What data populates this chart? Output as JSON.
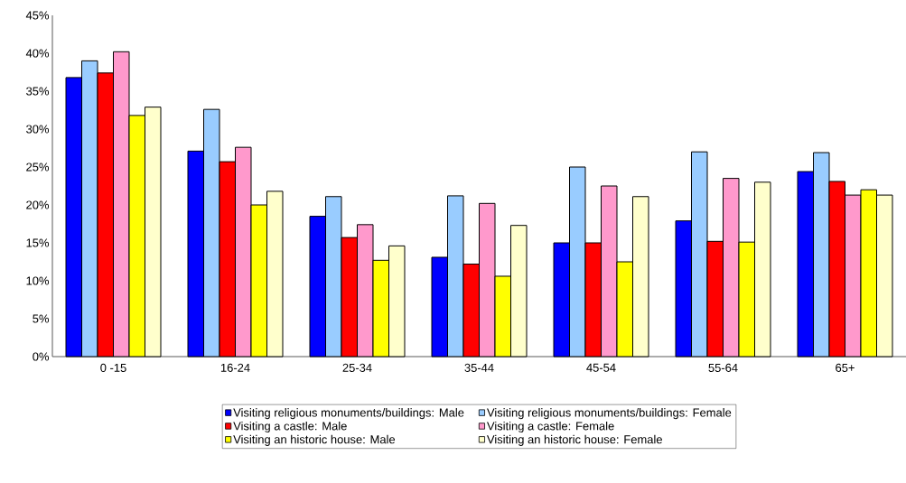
{
  "chart_data": {
    "type": "bar",
    "categories": [
      "0 -15",
      "16-24",
      "25-34",
      "35-44",
      "45-54",
      "55-64",
      "65+"
    ],
    "series": [
      {
        "name": "Visiting religious monuments/buildings: Male",
        "color": "#0000ff",
        "values": [
          36.8,
          27.1,
          18.5,
          13.1,
          15.0,
          17.9,
          24.4
        ]
      },
      {
        "name": "Visiting religious monuments/buildings: Female",
        "color": "#99ccff",
        "values": [
          39.0,
          32.6,
          21.1,
          21.2,
          25.0,
          27.0,
          26.9
        ]
      },
      {
        "name": "Visiting a castle: Male",
        "color": "#ff0000",
        "values": [
          37.4,
          25.7,
          15.7,
          12.2,
          15.0,
          15.2,
          23.1
        ]
      },
      {
        "name": "Visiting a castle: Female",
        "color": "#ff99cc",
        "values": [
          40.2,
          27.6,
          17.4,
          20.2,
          22.5,
          23.5,
          21.3
        ]
      },
      {
        "name": "Visiting an historic house: Male",
        "color": "#ffff00",
        "values": [
          31.8,
          20.0,
          12.7,
          10.6,
          12.5,
          15.1,
          22.0
        ]
      },
      {
        "name": "Visiting an historic house: Female",
        "color": "#ffffcc",
        "values": [
          32.9,
          21.8,
          14.6,
          17.3,
          21.1,
          23.0,
          21.3
        ]
      }
    ],
    "ylim": [
      0,
      45
    ],
    "yticks": [
      {
        "value": 0,
        "label": "0%"
      },
      {
        "value": 5,
        "label": "5%"
      },
      {
        "value": 10,
        "label": "10%"
      },
      {
        "value": 15,
        "label": "15%"
      },
      {
        "value": 20,
        "label": "20%"
      },
      {
        "value": 25,
        "label": "25%"
      },
      {
        "value": 30,
        "label": "30%"
      },
      {
        "value": 35,
        "label": "35%"
      },
      {
        "value": 40,
        "label": "40%"
      },
      {
        "value": 45,
        "label": "45%"
      }
    ],
    "grid": false,
    "legend": "bottom"
  }
}
